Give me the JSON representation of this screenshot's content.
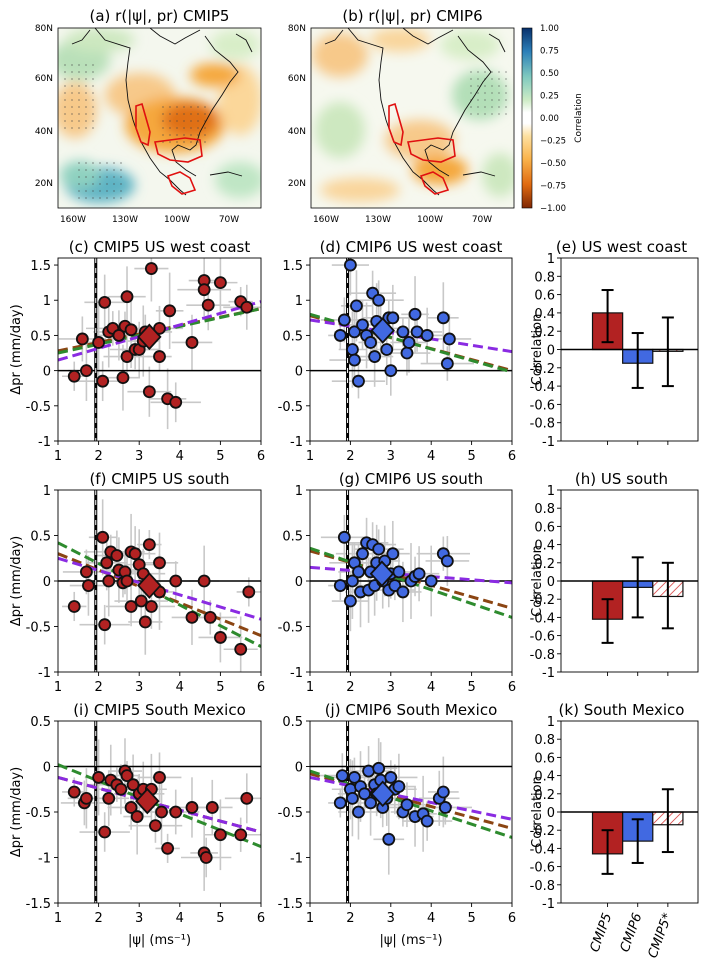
{
  "colors": {
    "cmip5": "#b22222",
    "cmip6": "#4169e1",
    "cmip5star": "#ff9999",
    "brown": "#8b4513",
    "green": "#2e8b2e",
    "purple": "#8a2be2",
    "error": "#c8c8c8"
  },
  "maps": [
    {
      "title": "(a) r(|ψ|, pr) CMIP5",
      "lat_ticks": [
        "80N",
        "60N",
        "40N",
        "20N"
      ],
      "lon_ticks": [
        "160W",
        "130W",
        "100W",
        "70W"
      ]
    },
    {
      "title": "(b) r(|ψ|, pr) CMIP6",
      "lat_ticks": [
        "80N",
        "60N",
        "40N",
        "20N"
      ],
      "lon_ticks": [
        "160W",
        "130W",
        "100W",
        "70W"
      ]
    }
  ],
  "colorbar": {
    "label": "Correlation",
    "ticks": [
      "1.00",
      "0.75",
      "0.50",
      "0.25",
      "0.00",
      "−0.25",
      "−0.50",
      "−0.75",
      "−1.00"
    ]
  },
  "xlabel": "|ψ| (ms⁻¹)",
  "ylabel": "Δpr (mm/day)",
  "bar_ylabel": "Correlation",
  "bar_categories": [
    "CMIP5",
    "CMIP6",
    "CMIP5*"
  ],
  "chart_data": [
    {
      "type": "scatter",
      "title": "(c) CMIP5 US west coast",
      "model": "cmip5",
      "xlim": [
        1,
        6
      ],
      "ylim": [
        -1,
        1.6
      ],
      "xticks": [
        1,
        2,
        3,
        4,
        5,
        6
      ],
      "yticks": [
        -1,
        -0.5,
        0,
        0.5,
        1,
        1.5
      ],
      "ytick_labels": [
        "-1",
        "-0.5",
        "0",
        "0.5",
        "1",
        "1.5"
      ],
      "vline": 1.93,
      "points": [
        [
          1.4,
          -0.08
        ],
        [
          1.6,
          0.45
        ],
        [
          1.7,
          0.0
        ],
        [
          2.0,
          0.4
        ],
        [
          2.1,
          -0.15
        ],
        [
          2.15,
          0.97
        ],
        [
          2.25,
          0.55
        ],
        [
          2.35,
          0.6
        ],
        [
          2.5,
          0.5
        ],
        [
          2.6,
          -0.1
        ],
        [
          2.65,
          0.63
        ],
        [
          2.7,
          0.2
        ],
        [
          2.7,
          1.05
        ],
        [
          2.8,
          0.58
        ],
        [
          2.9,
          0.3
        ],
        [
          3.0,
          0.3
        ],
        [
          3.1,
          0.42
        ],
        [
          3.15,
          0.55
        ],
        [
          3.25,
          -0.3
        ],
        [
          3.3,
          1.45
        ],
        [
          3.5,
          0.2
        ],
        [
          3.5,
          0.6
        ],
        [
          3.7,
          -0.4
        ],
        [
          3.75,
          0.85
        ],
        [
          3.9,
          -0.45
        ],
        [
          4.3,
          0.4
        ],
        [
          4.6,
          1.28
        ],
        [
          4.6,
          1.15
        ],
        [
          4.7,
          0.93
        ],
        [
          5.0,
          1.25
        ],
        [
          5.5,
          0.98
        ],
        [
          5.65,
          0.9
        ]
      ],
      "mean": [
        3.25,
        0.48
      ],
      "lines": [
        {
          "color": "brown",
          "y1": 0.28,
          "y6": 0.88
        },
        {
          "color": "green",
          "y1": 0.25,
          "y6": 0.88
        },
        {
          "color": "purple",
          "y1": 0.15,
          "y6": 0.98
        }
      ]
    },
    {
      "type": "scatter",
      "title": "(d) CMIP6 US west coast",
      "model": "cmip6",
      "xlim": [
        1,
        6
      ],
      "ylim": [
        -1,
        1.6
      ],
      "xticks": [
        1,
        2,
        3,
        4,
        5,
        6
      ],
      "yticks": [
        -1,
        -0.5,
        0,
        0.5,
        1,
        1.5
      ],
      "ytick_labels": [
        "-1",
        "-0.5",
        "0",
        "0.5",
        "1",
        "1.5"
      ],
      "vline": 1.93,
      "points": [
        [
          1.75,
          0.5
        ],
        [
          1.85,
          0.72
        ],
        [
          2.0,
          1.5
        ],
        [
          2.05,
          0.3
        ],
        [
          2.1,
          0.15
        ],
        [
          2.1,
          0.55
        ],
        [
          2.15,
          0.92
        ],
        [
          2.2,
          -0.15
        ],
        [
          2.3,
          0.65
        ],
        [
          2.4,
          0.5
        ],
        [
          2.5,
          0.4
        ],
        [
          2.55,
          1.1
        ],
        [
          2.6,
          0.2
        ],
        [
          2.65,
          0.7
        ],
        [
          2.7,
          1.0
        ],
        [
          2.75,
          0.6
        ],
        [
          2.9,
          0.3
        ],
        [
          2.95,
          0.75
        ],
        [
          3.0,
          0.0
        ],
        [
          3.05,
          0.75
        ],
        [
          3.3,
          0.55
        ],
        [
          3.4,
          0.25
        ],
        [
          3.45,
          0.4
        ],
        [
          3.6,
          0.8
        ],
        [
          3.65,
          0.55
        ],
        [
          3.9,
          0.5
        ],
        [
          4.3,
          0.75
        ],
        [
          4.4,
          0.1
        ],
        [
          4.45,
          0.45
        ]
      ],
      "mean": [
        2.8,
        0.57
      ],
      "lines": [
        {
          "color": "brown",
          "y1": 0.78,
          "y6": 0.0
        },
        {
          "color": "green",
          "y1": 0.8,
          "y6": -0.02
        },
        {
          "color": "purple",
          "y1": 0.72,
          "y6": 0.27
        }
      ]
    },
    {
      "type": "bar",
      "title": "(e) US west coast",
      "ylim": [
        -1,
        1
      ],
      "yticks": [
        -1,
        -0.8,
        -0.6,
        -0.4,
        -0.2,
        0,
        0.2,
        0.4,
        0.6,
        0.8,
        1
      ],
      "values": [
        0.4,
        -0.15,
        -0.02
      ],
      "err_low": [
        0.08,
        -0.42,
        -0.4
      ],
      "err_high": [
        0.65,
        0.18,
        0.35
      ]
    },
    {
      "type": "scatter",
      "title": "(f) CMIP5 US south",
      "model": "cmip5",
      "xlim": [
        1,
        6
      ],
      "ylim": [
        -1,
        1
      ],
      "xticks": [
        1,
        2,
        3,
        4,
        5,
        6
      ],
      "yticks": [
        -1,
        -0.5,
        0,
        0.5,
        1
      ],
      "ytick_labels": [
        "-1",
        "-0.5",
        "0",
        "0.5",
        "1"
      ],
      "vline": 1.93,
      "points": [
        [
          1.4,
          -0.28
        ],
        [
          1.7,
          0.1
        ],
        [
          1.75,
          -0.05
        ],
        [
          2.1,
          0.48
        ],
        [
          2.15,
          -0.48
        ],
        [
          2.2,
          0.2
        ],
        [
          2.25,
          0.0
        ],
        [
          2.3,
          0.32
        ],
        [
          2.45,
          0.28
        ],
        [
          2.5,
          0.12
        ],
        [
          2.6,
          -0.02
        ],
        [
          2.65,
          0.1
        ],
        [
          2.7,
          0.0
        ],
        [
          2.8,
          0.32
        ],
        [
          2.8,
          -0.28
        ],
        [
          2.9,
          0.3
        ],
        [
          3.0,
          0.18
        ],
        [
          3.05,
          -0.22
        ],
        [
          3.1,
          0.08
        ],
        [
          3.15,
          -0.45
        ],
        [
          3.25,
          0.4
        ],
        [
          3.3,
          -0.28
        ],
        [
          3.5,
          0.2
        ],
        [
          3.5,
          -0.12
        ],
        [
          3.9,
          0.0
        ],
        [
          4.3,
          -0.4
        ],
        [
          4.6,
          0.0
        ],
        [
          4.75,
          -0.4
        ],
        [
          5.0,
          -0.62
        ],
        [
          5.5,
          -0.75
        ],
        [
          5.7,
          -0.12
        ]
      ],
      "mean": [
        3.25,
        -0.05
      ],
      "lines": [
        {
          "color": "brown",
          "y1": 0.3,
          "y6": -0.6
        },
        {
          "color": "green",
          "y1": 0.42,
          "y6": -0.72
        },
        {
          "color": "purple",
          "y1": 0.25,
          "y6": -0.42
        }
      ]
    },
    {
      "type": "scatter",
      "title": "(g) CMIP6 US south",
      "model": "cmip6",
      "xlim": [
        1,
        6
      ],
      "ylim": [
        -1,
        1
      ],
      "xticks": [
        1,
        2,
        3,
        4,
        5,
        6
      ],
      "yticks": [
        -1,
        -0.5,
        0,
        0.5,
        1
      ],
      "ytick_labels": [
        "-1",
        "-0.5",
        "0",
        "0.5",
        "1"
      ],
      "vline": 1.93,
      "points": [
        [
          1.75,
          -0.05
        ],
        [
          1.85,
          0.48
        ],
        [
          2.0,
          -0.22
        ],
        [
          2.05,
          0.0
        ],
        [
          2.1,
          0.2
        ],
        [
          2.2,
          0.1
        ],
        [
          2.25,
          -0.12
        ],
        [
          2.3,
          0.3
        ],
        [
          2.4,
          0.42
        ],
        [
          2.45,
          -0.1
        ],
        [
          2.5,
          0.1
        ],
        [
          2.55,
          0.4
        ],
        [
          2.6,
          -0.05
        ],
        [
          2.65,
          0.2
        ],
        [
          2.7,
          0.35
        ],
        [
          2.8,
          0.0
        ],
        [
          2.85,
          0.22
        ],
        [
          2.95,
          -0.1
        ],
        [
          3.0,
          0.08
        ],
        [
          3.05,
          0.3
        ],
        [
          3.1,
          -0.05
        ],
        [
          3.2,
          0.1
        ],
        [
          3.3,
          -0.12
        ],
        [
          3.5,
          0.0
        ],
        [
          3.6,
          0.05
        ],
        [
          3.7,
          0.08
        ],
        [
          4.0,
          0.0
        ],
        [
          4.3,
          0.3
        ],
        [
          4.4,
          0.22
        ]
      ],
      "mean": [
        2.78,
        0.08
      ],
      "lines": [
        {
          "color": "brown",
          "y1": 0.33,
          "y6": -0.3
        },
        {
          "color": "green",
          "y1": 0.36,
          "y6": -0.4
        },
        {
          "color": "purple",
          "y1": 0.15,
          "y6": -0.02
        }
      ]
    },
    {
      "type": "bar",
      "title": "(h) US south",
      "ylim": [
        -1,
        1
      ],
      "yticks": [
        -1,
        -0.8,
        -0.6,
        -0.4,
        -0.2,
        0,
        0.2,
        0.4,
        0.6,
        0.8,
        1
      ],
      "values": [
        -0.42,
        -0.07,
        -0.17
      ],
      "err_low": [
        -0.68,
        -0.4,
        -0.52
      ],
      "err_high": [
        -0.2,
        0.26,
        0.2
      ]
    },
    {
      "type": "scatter",
      "title": "(i) CMIP5 South Mexico",
      "model": "cmip5",
      "xlim": [
        1,
        6
      ],
      "ylim": [
        -1.5,
        0.5
      ],
      "xticks": [
        1,
        2,
        3,
        4,
        5,
        6
      ],
      "yticks": [
        -1.5,
        -1,
        -0.5,
        0,
        0.5
      ],
      "ytick_labels": [
        "-1.5",
        "-1",
        "-0.5",
        "0",
        "0.5"
      ],
      "vline": 1.93,
      "points": [
        [
          1.4,
          -0.28
        ],
        [
          1.65,
          -0.4
        ],
        [
          1.7,
          -0.35
        ],
        [
          2.0,
          -0.12
        ],
        [
          2.15,
          -0.72
        ],
        [
          2.25,
          -0.35
        ],
        [
          2.3,
          -0.15
        ],
        [
          2.45,
          -0.2
        ],
        [
          2.55,
          -0.25
        ],
        [
          2.65,
          -0.05
        ],
        [
          2.7,
          -0.1
        ],
        [
          2.8,
          -0.45
        ],
        [
          2.85,
          -0.2
        ],
        [
          2.95,
          -0.55
        ],
        [
          3.0,
          -0.3
        ],
        [
          3.1,
          -0.25
        ],
        [
          3.3,
          -0.25
        ],
        [
          3.4,
          -0.65
        ],
        [
          3.5,
          -0.12
        ],
        [
          3.55,
          -0.5
        ],
        [
          3.7,
          -0.9
        ],
        [
          3.9,
          -0.5
        ],
        [
          4.3,
          -0.45
        ],
        [
          4.6,
          -0.95
        ],
        [
          4.65,
          -1.0
        ],
        [
          4.8,
          -0.45
        ],
        [
          5.0,
          -0.75
        ],
        [
          5.5,
          -0.75
        ],
        [
          5.65,
          -0.35
        ]
      ],
      "mean": [
        3.2,
        -0.38
      ],
      "lines": [
        {
          "color": "brown",
          "y1": -0.12,
          "y6": -0.72
        },
        {
          "color": "green",
          "y1": 0.02,
          "y6": -0.88
        },
        {
          "color": "purple",
          "y1": -0.12,
          "y6": -0.72
        }
      ]
    },
    {
      "type": "scatter",
      "title": "(j) CMIP6 South Mexico",
      "model": "cmip6",
      "xlim": [
        1,
        6
      ],
      "ylim": [
        -1.5,
        0.5
      ],
      "xticks": [
        1,
        2,
        3,
        4,
        5,
        6
      ],
      "yticks": [
        -1.5,
        -1,
        -0.5,
        0,
        0.5
      ],
      "ytick_labels": [
        "-1.5",
        "-1",
        "-0.5",
        "0",
        "0.5"
      ],
      "vline": 1.93,
      "points": [
        [
          1.75,
          -0.4
        ],
        [
          1.8,
          -0.1
        ],
        [
          2.0,
          -0.25
        ],
        [
          2.05,
          -0.35
        ],
        [
          2.1,
          -0.12
        ],
        [
          2.2,
          -0.5
        ],
        [
          2.25,
          -0.22
        ],
        [
          2.35,
          -0.3
        ],
        [
          2.45,
          -0.05
        ],
        [
          2.5,
          -0.4
        ],
        [
          2.6,
          -0.2
        ],
        [
          2.65,
          -0.3
        ],
        [
          2.7,
          -0.02
        ],
        [
          2.75,
          -0.15
        ],
        [
          2.8,
          -0.45
        ],
        [
          2.9,
          -0.35
        ],
        [
          2.95,
          -0.8
        ],
        [
          3.0,
          -0.12
        ],
        [
          3.1,
          -0.25
        ],
        [
          3.2,
          -0.22
        ],
        [
          3.3,
          -0.5
        ],
        [
          3.4,
          -0.42
        ],
        [
          3.6,
          -0.55
        ],
        [
          3.8,
          -0.52
        ],
        [
          3.9,
          -0.6
        ],
        [
          4.2,
          -0.35
        ],
        [
          4.3,
          -0.28
        ],
        [
          4.35,
          -0.45
        ]
      ],
      "mean": [
        2.8,
        -0.3
      ],
      "lines": [
        {
          "color": "brown",
          "y1": -0.08,
          "y6": -0.68
        },
        {
          "color": "green",
          "y1": -0.05,
          "y6": -0.78
        },
        {
          "color": "purple",
          "y1": -0.12,
          "y6": -0.58
        }
      ]
    },
    {
      "type": "bar",
      "title": "(k) South Mexico",
      "ylim": [
        -1,
        1
      ],
      "yticks": [
        -1,
        -0.8,
        -0.6,
        -0.4,
        -0.2,
        0,
        0.2,
        0.4,
        0.6,
        0.8,
        1
      ],
      "values": [
        -0.46,
        -0.32,
        -0.14
      ],
      "err_low": [
        -0.68,
        -0.56,
        -0.44
      ],
      "err_high": [
        -0.2,
        -0.08,
        0.25
      ]
    }
  ]
}
